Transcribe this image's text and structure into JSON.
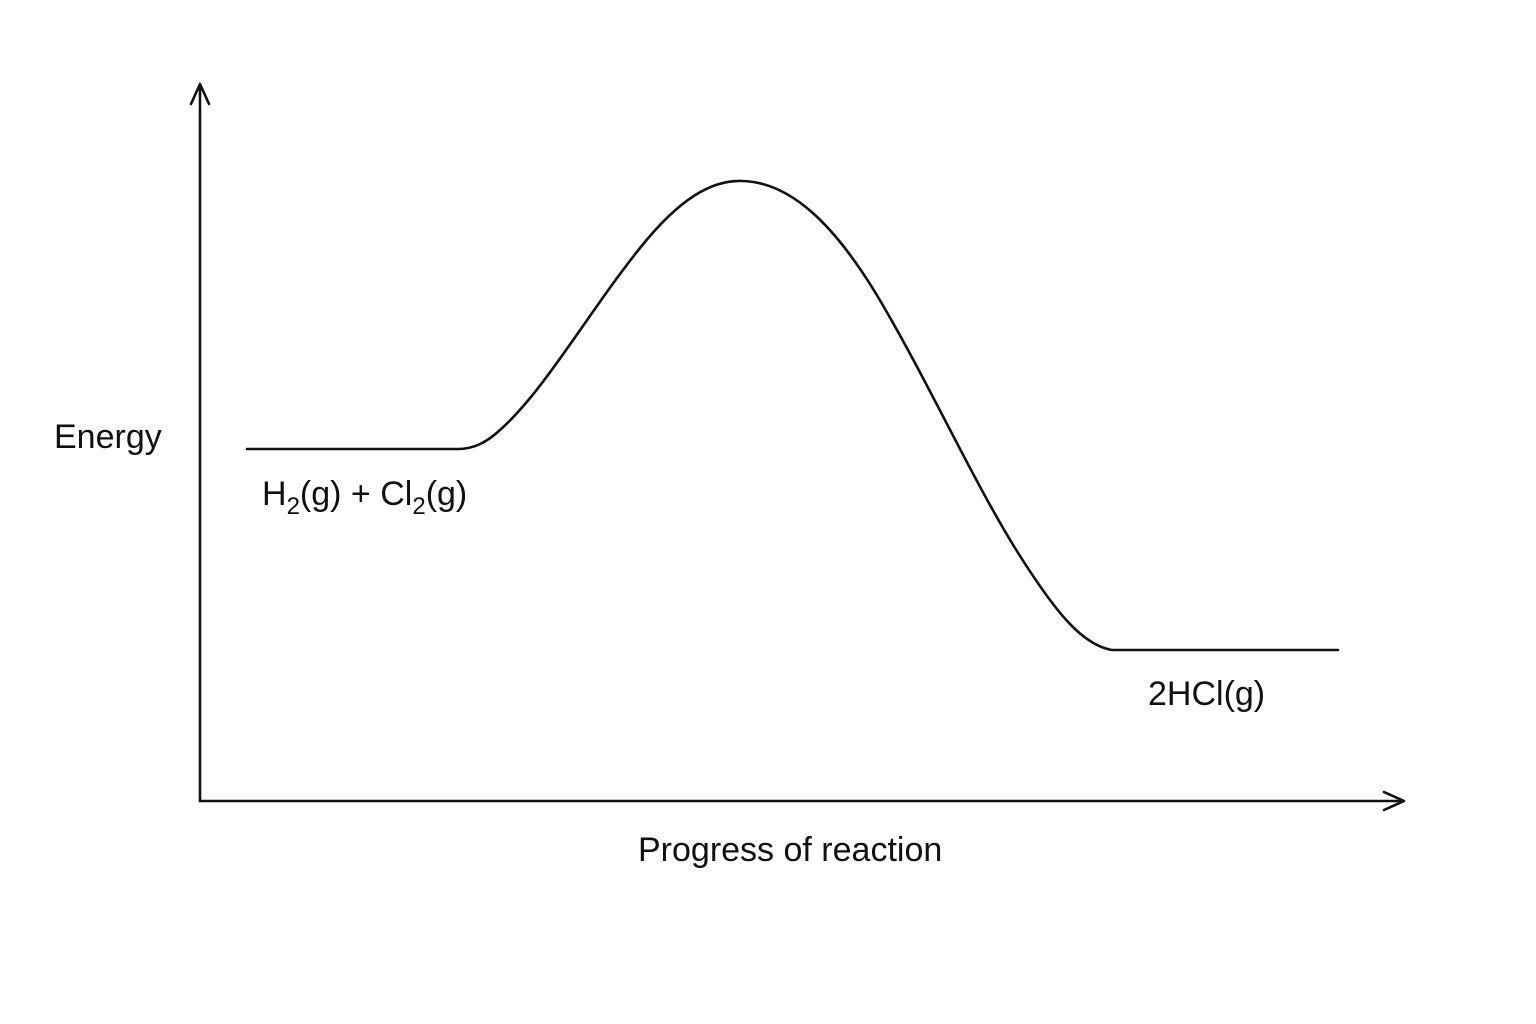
{
  "diagram": {
    "y_axis_label": "Energy",
    "x_axis_label": "Progress of reaction",
    "reactants": {
      "h_symbol": "H",
      "h_subscript": "2",
      "h_state": "(g) + Cl",
      "cl_subscript": "2",
      "cl_state": "(g)"
    },
    "products": {
      "label": "2HCl(g)"
    },
    "energy_profile": {
      "reactant_level": "higher",
      "product_level": "lower",
      "peak": "activation energy maximum between reactants and products"
    }
  }
}
